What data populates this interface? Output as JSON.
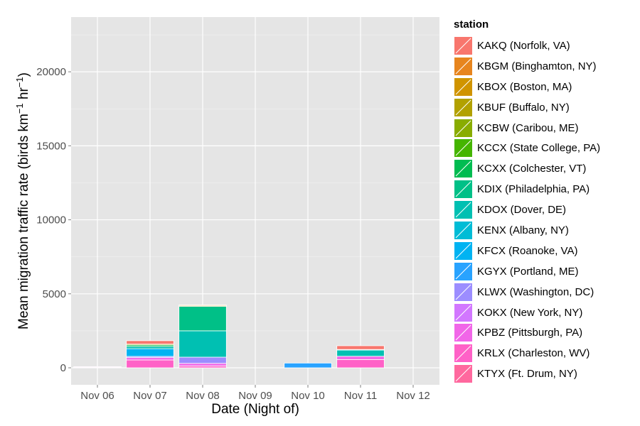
{
  "chart_data": {
    "type": "bar",
    "stacked": true,
    "xlabel": "Date (Night of)",
    "ylabel": "Mean migration traffic rate (birds km⁻¹ hr⁻¹)",
    "ylabel_parts": [
      "Mean migration traffic rate (birds km",
      "−1",
      " hr",
      "−1",
      ")"
    ],
    "categories": [
      "Nov 06",
      "Nov 07",
      "Nov 08",
      "Nov 09",
      "Nov 10",
      "Nov 11",
      "Nov 12"
    ],
    "ylim": [
      -1150,
      23700
    ],
    "yticks": [
      0,
      5000,
      10000,
      15000,
      20000
    ],
    "ytick_labels": [
      "0",
      "5000",
      "10000",
      "15000",
      "20000"
    ],
    "grid": true,
    "legend_title": "station",
    "legend_position": "right",
    "series": [
      {
        "name": "KAKQ (Norfolk, VA)",
        "color": "#F8766D",
        "values": [
          0,
          230,
          0,
          0,
          0,
          250,
          0
        ]
      },
      {
        "name": "KBGM (Binghamton, NY)",
        "color": "#E7851E",
        "values": [
          0,
          0,
          40,
          0,
          0,
          0,
          0
        ]
      },
      {
        "name": "KBOX (Boston, MA)",
        "color": "#D09400",
        "values": [
          0,
          0,
          60,
          0,
          0,
          0,
          0
        ]
      },
      {
        "name": "KBUF (Buffalo, NY)",
        "color": "#B2A100",
        "values": [
          0,
          0,
          0,
          0,
          0,
          0,
          0
        ]
      },
      {
        "name": "KCBW (Caribou, ME)",
        "color": "#89AC00",
        "values": [
          0,
          60,
          0,
          0,
          0,
          0,
          0
        ]
      },
      {
        "name": "KCCX (State College, PA)",
        "color": "#45B500",
        "values": [
          0,
          0,
          0,
          0,
          0,
          0,
          0
        ]
      },
      {
        "name": "KCXX (Colchester, VT)",
        "color": "#00BC51",
        "values": [
          0,
          100,
          0,
          0,
          0,
          0,
          0
        ]
      },
      {
        "name": "KDIX (Philadelphia, PA)",
        "color": "#00C087",
        "values": [
          0,
          0,
          1650,
          0,
          0,
          40,
          0
        ]
      },
      {
        "name": "KDOX (Dover, DE)",
        "color": "#00C0B2",
        "values": [
          0,
          150,
          1780,
          0,
          0,
          420,
          0
        ]
      },
      {
        "name": "KENX (Albany, NY)",
        "color": "#00BCD6",
        "values": [
          0,
          0,
          0,
          0,
          0,
          0,
          0
        ]
      },
      {
        "name": "KFCX (Roanoke, VA)",
        "color": "#00B3F2",
        "values": [
          0,
          520,
          0,
          0,
          0,
          0,
          0
        ]
      },
      {
        "name": "KGYX (Portland, ME)",
        "color": "#29A3FF",
        "values": [
          0,
          0,
          0,
          0,
          320,
          0,
          0
        ]
      },
      {
        "name": "KLWX (Washington, DC)",
        "color": "#9C8DFF",
        "values": [
          0,
          80,
          420,
          0,
          0,
          0,
          0
        ]
      },
      {
        "name": "KOKX (New York, NY)",
        "color": "#D277FF",
        "values": [
          0,
          0,
          0,
          0,
          0,
          0,
          0
        ]
      },
      {
        "name": "KPBZ (Pittsburgh, PA)",
        "color": "#F166E8",
        "values": [
          40,
          160,
          170,
          0,
          0,
          220,
          0
        ]
      },
      {
        "name": "KRLX (Charleston, WV)",
        "color": "#FF61C7",
        "values": [
          40,
          530,
          130,
          0,
          0,
          560,
          0
        ]
      },
      {
        "name": "KTYX (Ft. Drum, NY)",
        "color": "#FF689E",
        "values": [
          0,
          0,
          0,
          0,
          0,
          0,
          0
        ]
      }
    ]
  }
}
